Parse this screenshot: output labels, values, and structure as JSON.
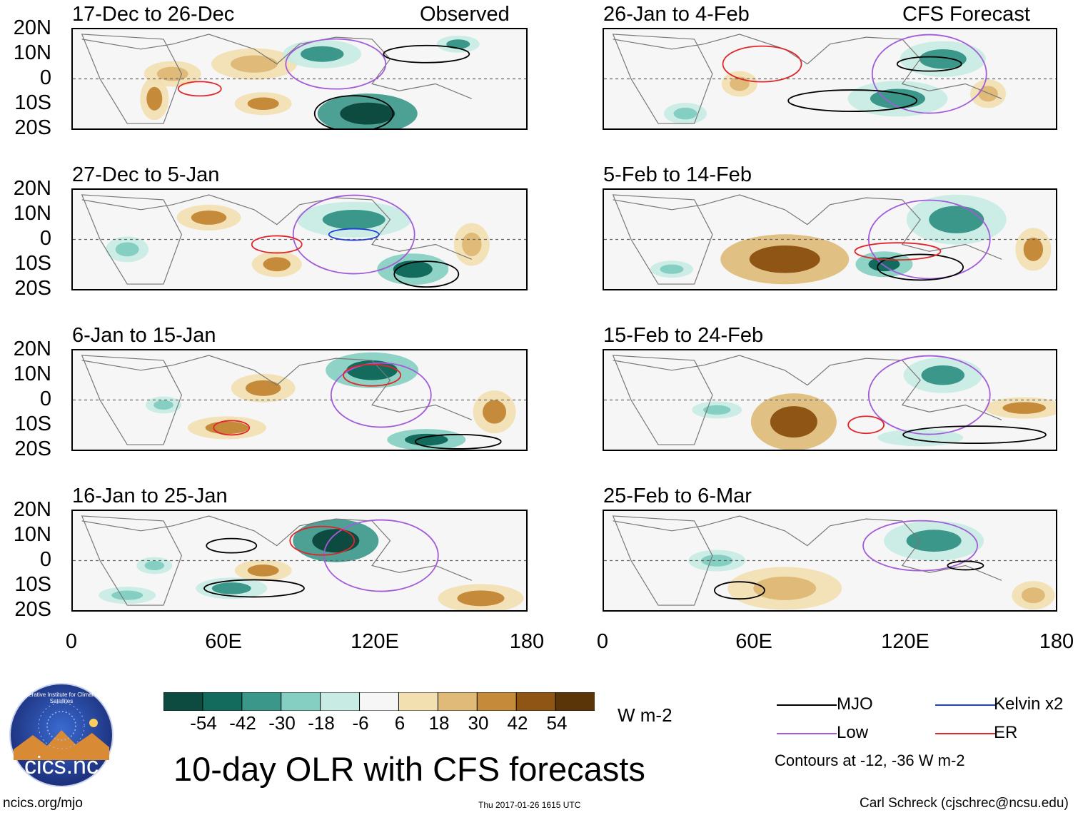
{
  "observed_label": "Observed",
  "forecast_label": "CFS Forecast",
  "panels_observed": [
    {
      "title": "17-Dec to 26-Dec"
    },
    {
      "title": "27-Dec to 5-Jan"
    },
    {
      "title": "6-Jan to 15-Jan"
    },
    {
      "title": "16-Jan to 25-Jan"
    }
  ],
  "panels_forecast": [
    {
      "title": "26-Jan to 4-Feb"
    },
    {
      "title": "5-Feb to 14-Feb"
    },
    {
      "title": "15-Feb to 24-Feb"
    },
    {
      "title": "25-Feb to 6-Mar"
    }
  ],
  "lat_labels": [
    "20N",
    "10N",
    "0",
    "10S",
    "20S"
  ],
  "lon_labels": [
    "0",
    "60E",
    "120E",
    "180"
  ],
  "colorbar": {
    "labels": [
      "-54",
      "-42",
      "-30",
      "-18",
      "-6",
      "6",
      "18",
      "30",
      "42",
      "54"
    ],
    "units": "W m-2",
    "colors": [
      "#0d4a3f",
      "#126b5c",
      "#3a978a",
      "#84cfc1",
      "#c8ece4",
      "#f6f6f6",
      "#f3e0b0",
      "#dfba78",
      "#c58a3a",
      "#8f5514",
      "#5a3508"
    ]
  },
  "legend": {
    "mjo": {
      "label": "MJO",
      "color": "#000000"
    },
    "kelvin": {
      "label": "Kelvin x2",
      "color": "#1f3fd6"
    },
    "low": {
      "label": "Low",
      "color": "#a35bd8"
    },
    "er": {
      "label": "ER",
      "color": "#e0262a"
    },
    "contour_note": "Contours at -12, -36 W m-2"
  },
  "logo_text": "cics.nc",
  "logo_ring_text": "Cooperative Institute for Climate and Satellites",
  "main_title": "10-day OLR with CFS forecasts",
  "footer": {
    "url": "ncics.org/mjo",
    "timestamp": "Thu 2017-01-26 1615 UTC",
    "author": "Carl Schreck (cjschrec@ncsu.edu)"
  }
}
